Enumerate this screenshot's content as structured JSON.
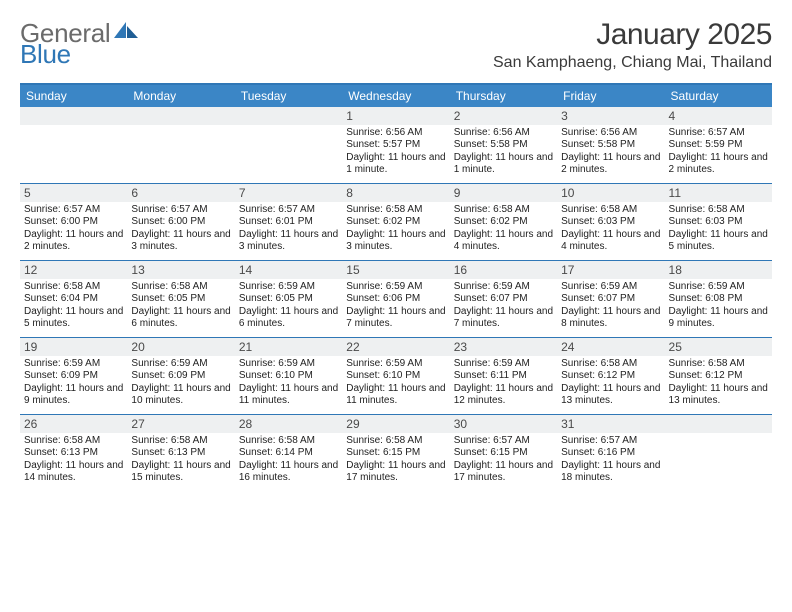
{
  "brand": {
    "part1": "General",
    "part2": "Blue"
  },
  "title": "January 2025",
  "location": "San Kamphaeng, Chiang Mai, Thailand",
  "colors": {
    "accent": "#3b86c6",
    "rule": "#2f77b6",
    "daynum_bg": "#eef0f1",
    "text": "#222222",
    "logo_gray": "#6b6b6b"
  },
  "dow": [
    "Sunday",
    "Monday",
    "Tuesday",
    "Wednesday",
    "Thursday",
    "Friday",
    "Saturday"
  ],
  "weeks": [
    [
      {
        "n": "",
        "sr": "",
        "ss": "",
        "dl": ""
      },
      {
        "n": "",
        "sr": "",
        "ss": "",
        "dl": ""
      },
      {
        "n": "",
        "sr": "",
        "ss": "",
        "dl": ""
      },
      {
        "n": "1",
        "sr": "6:56 AM",
        "ss": "5:57 PM",
        "dl": "11 hours and 1 minute."
      },
      {
        "n": "2",
        "sr": "6:56 AM",
        "ss": "5:58 PM",
        "dl": "11 hours and 1 minute."
      },
      {
        "n": "3",
        "sr": "6:56 AM",
        "ss": "5:58 PM",
        "dl": "11 hours and 2 minutes."
      },
      {
        "n": "4",
        "sr": "6:57 AM",
        "ss": "5:59 PM",
        "dl": "11 hours and 2 minutes."
      }
    ],
    [
      {
        "n": "5",
        "sr": "6:57 AM",
        "ss": "6:00 PM",
        "dl": "11 hours and 2 minutes."
      },
      {
        "n": "6",
        "sr": "6:57 AM",
        "ss": "6:00 PM",
        "dl": "11 hours and 3 minutes."
      },
      {
        "n": "7",
        "sr": "6:57 AM",
        "ss": "6:01 PM",
        "dl": "11 hours and 3 minutes."
      },
      {
        "n": "8",
        "sr": "6:58 AM",
        "ss": "6:02 PM",
        "dl": "11 hours and 3 minutes."
      },
      {
        "n": "9",
        "sr": "6:58 AM",
        "ss": "6:02 PM",
        "dl": "11 hours and 4 minutes."
      },
      {
        "n": "10",
        "sr": "6:58 AM",
        "ss": "6:03 PM",
        "dl": "11 hours and 4 minutes."
      },
      {
        "n": "11",
        "sr": "6:58 AM",
        "ss": "6:03 PM",
        "dl": "11 hours and 5 minutes."
      }
    ],
    [
      {
        "n": "12",
        "sr": "6:58 AM",
        "ss": "6:04 PM",
        "dl": "11 hours and 5 minutes."
      },
      {
        "n": "13",
        "sr": "6:58 AM",
        "ss": "6:05 PM",
        "dl": "11 hours and 6 minutes."
      },
      {
        "n": "14",
        "sr": "6:59 AM",
        "ss": "6:05 PM",
        "dl": "11 hours and 6 minutes."
      },
      {
        "n": "15",
        "sr": "6:59 AM",
        "ss": "6:06 PM",
        "dl": "11 hours and 7 minutes."
      },
      {
        "n": "16",
        "sr": "6:59 AM",
        "ss": "6:07 PM",
        "dl": "11 hours and 7 minutes."
      },
      {
        "n": "17",
        "sr": "6:59 AM",
        "ss": "6:07 PM",
        "dl": "11 hours and 8 minutes."
      },
      {
        "n": "18",
        "sr": "6:59 AM",
        "ss": "6:08 PM",
        "dl": "11 hours and 9 minutes."
      }
    ],
    [
      {
        "n": "19",
        "sr": "6:59 AM",
        "ss": "6:09 PM",
        "dl": "11 hours and 9 minutes."
      },
      {
        "n": "20",
        "sr": "6:59 AM",
        "ss": "6:09 PM",
        "dl": "11 hours and 10 minutes."
      },
      {
        "n": "21",
        "sr": "6:59 AM",
        "ss": "6:10 PM",
        "dl": "11 hours and 11 minutes."
      },
      {
        "n": "22",
        "sr": "6:59 AM",
        "ss": "6:10 PM",
        "dl": "11 hours and 11 minutes."
      },
      {
        "n": "23",
        "sr": "6:59 AM",
        "ss": "6:11 PM",
        "dl": "11 hours and 12 minutes."
      },
      {
        "n": "24",
        "sr": "6:58 AM",
        "ss": "6:12 PM",
        "dl": "11 hours and 13 minutes."
      },
      {
        "n": "25",
        "sr": "6:58 AM",
        "ss": "6:12 PM",
        "dl": "11 hours and 13 minutes."
      }
    ],
    [
      {
        "n": "26",
        "sr": "6:58 AM",
        "ss": "6:13 PM",
        "dl": "11 hours and 14 minutes."
      },
      {
        "n": "27",
        "sr": "6:58 AM",
        "ss": "6:13 PM",
        "dl": "11 hours and 15 minutes."
      },
      {
        "n": "28",
        "sr": "6:58 AM",
        "ss": "6:14 PM",
        "dl": "11 hours and 16 minutes."
      },
      {
        "n": "29",
        "sr": "6:58 AM",
        "ss": "6:15 PM",
        "dl": "11 hours and 17 minutes."
      },
      {
        "n": "30",
        "sr": "6:57 AM",
        "ss": "6:15 PM",
        "dl": "11 hours and 17 minutes."
      },
      {
        "n": "31",
        "sr": "6:57 AM",
        "ss": "6:16 PM",
        "dl": "11 hours and 18 minutes."
      },
      {
        "n": "",
        "sr": "",
        "ss": "",
        "dl": ""
      }
    ]
  ],
  "labels": {
    "sunrise": "Sunrise:",
    "sunset": "Sunset:",
    "daylight": "Daylight:"
  }
}
